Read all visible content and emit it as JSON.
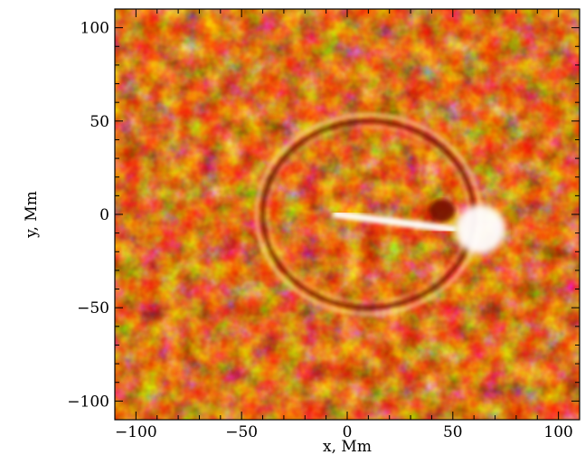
{
  "chart_data": {
    "type": "heatmap",
    "title": "",
    "xlabel": "x, Mm",
    "ylabel": "y, Mm",
    "xlim": [
      -110,
      110
    ],
    "ylim": [
      -110,
      110
    ],
    "x_ticks": [
      -100,
      -50,
      0,
      50,
      100
    ],
    "y_ticks": [
      -100,
      -50,
      0,
      50,
      100
    ],
    "x_tick_labels": [
      "−100",
      "−50",
      "0",
      "50",
      "100"
    ],
    "y_tick_labels": [
      "−100",
      "−50",
      "0",
      "50",
      "100"
    ],
    "colormap": [
      "#6e0e00",
      "#b83000",
      "#e06010",
      "#f49640",
      "#fccf9a",
      "#ffffff"
    ],
    "grid": false,
    "features": {
      "ring": {
        "center": [
          10,
          0
        ],
        "radius": 50
      },
      "bright_patch": {
        "center": [
          63,
          -8
        ],
        "radius": 12
      },
      "bright_streak": {
        "from": [
          -5,
          0
        ],
        "to": [
          50,
          -8
        ]
      },
      "dark_spot": {
        "center": [
          45,
          2
        ],
        "radius": 6
      }
    }
  }
}
